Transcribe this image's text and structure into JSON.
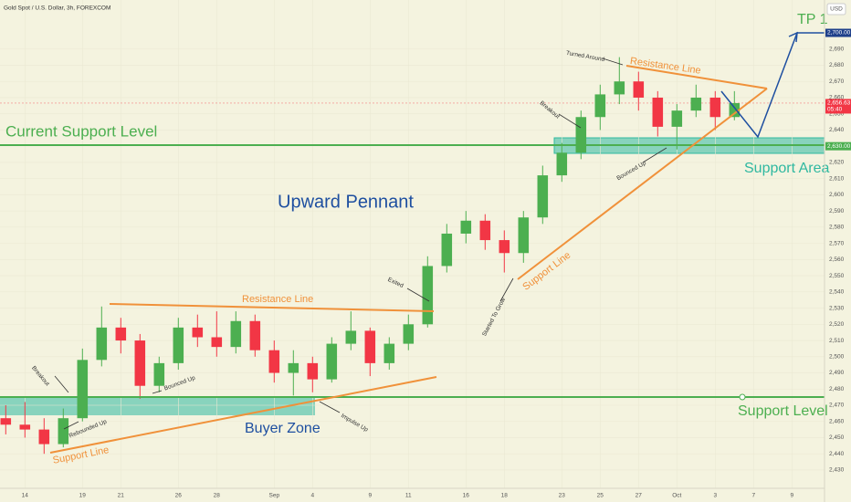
{
  "chart_data": {
    "type": "candlestick",
    "title": "Gold Spot / U.S. Dollar, 3h, FOREXCOM",
    "currency": "USD",
    "x": [
      -1,
      0,
      1,
      2,
      3,
      4,
      5,
      6,
      7,
      8,
      9,
      10,
      11,
      12,
      13,
      14,
      15,
      16,
      17,
      18,
      19,
      20,
      21,
      22,
      23,
      24,
      25,
      26,
      27,
      28,
      29,
      30,
      31,
      32,
      33,
      34,
      35,
      36,
      37
    ],
    "open": [
      2462,
      2458,
      2455,
      2446,
      2462,
      2498,
      2518,
      2510,
      2482,
      2496,
      2518,
      2512,
      2506,
      2522,
      2504,
      2490,
      2496,
      2486,
      2508,
      2516,
      2496,
      2508,
      2520,
      2556,
      2576,
      2584,
      2572,
      2564,
      2586,
      2612,
      2626,
      2648,
      2662,
      2670,
      2660,
      2642,
      2652,
      2660,
      2648
    ],
    "high": [
      2470,
      2472,
      2462,
      2468,
      2505,
      2531,
      2524,
      2514,
      2500,
      2524,
      2526,
      2528,
      2528,
      2526,
      2510,
      2504,
      2500,
      2512,
      2528,
      2518,
      2512,
      2526,
      2562,
      2582,
      2590,
      2588,
      2578,
      2590,
      2618,
      2632,
      2652,
      2668,
      2685,
      2676,
      2664,
      2656,
      2668,
      2664,
      2664
    ],
    "low": [
      2452,
      2450,
      2440,
      2444,
      2460,
      2494,
      2502,
      2474,
      2478,
      2492,
      2506,
      2500,
      2502,
      2500,
      2484,
      2476,
      2478,
      2484,
      2504,
      2488,
      2492,
      2504,
      2518,
      2552,
      2570,
      2566,
      2552,
      2558,
      2582,
      2608,
      2622,
      2640,
      2656,
      2652,
      2636,
      2628,
      2648,
      2640,
      2646
    ],
    "close": [
      2458,
      2455,
      2446,
      2462,
      2498,
      2518,
      2510,
      2482,
      2496,
      2518,
      2512,
      2506,
      2522,
      2504,
      2490,
      2496,
      2486,
      2508,
      2516,
      2496,
      2508,
      2520,
      2556,
      2576,
      2584,
      2572,
      2564,
      2586,
      2612,
      2626,
      2648,
      2662,
      2670,
      2660,
      2642,
      2652,
      2660,
      2648,
      2656.63
    ],
    "up_color": "#4caf50",
    "down_color": "#f23645",
    "xlim": [
      -1.3,
      41.7
    ],
    "xticks": [
      {
        "value": 0,
        "label": "14"
      },
      {
        "value": 3,
        "label": "19"
      },
      {
        "value": 5,
        "label": "21"
      },
      {
        "value": 8,
        "label": "26"
      },
      {
        "value": 10,
        "label": "28"
      },
      {
        "value": 13,
        "label": "Sep"
      },
      {
        "value": 15,
        "label": "4"
      },
      {
        "value": 18,
        "label": "9"
      },
      {
        "value": 20,
        "label": "11"
      },
      {
        "value": 23,
        "label": "16"
      },
      {
        "value": 25,
        "label": "18"
      },
      {
        "value": 28,
        "label": "23"
      },
      {
        "value": 30,
        "label": "25"
      },
      {
        "value": 32,
        "label": "27"
      },
      {
        "value": 34,
        "label": "Oct"
      },
      {
        "value": 36,
        "label": "3"
      },
      {
        "value": 38,
        "label": "7"
      },
      {
        "value": 40,
        "label": "9"
      }
    ],
    "ylim": [
      2418.7,
      2720.3
    ],
    "yticks": [
      {
        "value": 2430,
        "label": "2,430"
      },
      {
        "value": 2440,
        "label": "2,440"
      },
      {
        "value": 2450,
        "label": "2,450"
      },
      {
        "value": 2460,
        "label": "2,460"
      },
      {
        "value": 2470,
        "label": "2,470"
      },
      {
        "value": 2480,
        "label": "2,480"
      },
      {
        "value": 2490,
        "label": "2,490"
      },
      {
        "value": 2500,
        "label": "2,500"
      },
      {
        "value": 2510,
        "label": "2,510"
      },
      {
        "value": 2520,
        "label": "2,520"
      },
      {
        "value": 2530,
        "label": "2,530"
      },
      {
        "value": 2540,
        "label": "2,540"
      },
      {
        "value": 2550,
        "label": "2,550"
      },
      {
        "value": 2560,
        "label": "2,560"
      },
      {
        "value": 2570,
        "label": "2,570"
      },
      {
        "value": 2580,
        "label": "2,580"
      },
      {
        "value": 2590,
        "label": "2,590"
      },
      {
        "value": 2600,
        "label": "2,600"
      },
      {
        "value": 2610,
        "label": "2,610"
      },
      {
        "value": 2620,
        "label": "2,620"
      },
      {
        "value": 2640,
        "label": "2,640"
      },
      {
        "value": 2650,
        "label": "2,650"
      },
      {
        "value": 2660,
        "label": "2,660"
      },
      {
        "value": 2670,
        "label": "2,670"
      },
      {
        "value": 2680,
        "label": "2,680"
      },
      {
        "value": 2690,
        "label": "2,690"
      }
    ],
    "price_tags": [
      {
        "value": 2700,
        "label": "2,700.00",
        "color": "#1e3f8a"
      },
      {
        "value": 2656.63,
        "label": "2,656.63",
        "sub": "05:40",
        "color": "#f23645"
      },
      {
        "value": 2630,
        "label": "2,630.00",
        "color": "#4caf50"
      }
    ],
    "annotations": {
      "current_support": "Current Support Level",
      "pattern": "Upward Pennant",
      "resistance_low": "Resistance Line",
      "resistance_high": "Resistance Line",
      "support_low": "Support Line",
      "support_high": "Support Line",
      "buyer_zone": "Buyer Zone",
      "support_area": "Support Area",
      "support_level": "Support Level",
      "tp": "TP 1",
      "turned": "Turned Around",
      "breakout_high": "Breakout",
      "breakout_low": "Breakout",
      "exited": "Exited",
      "bounced_low": "Bounced Up",
      "bounced_high": "Bounced Up",
      "rebounded": "Rebounded Up",
      "impulse": "Impulse Up",
      "started": "Started To Grow"
    }
  }
}
